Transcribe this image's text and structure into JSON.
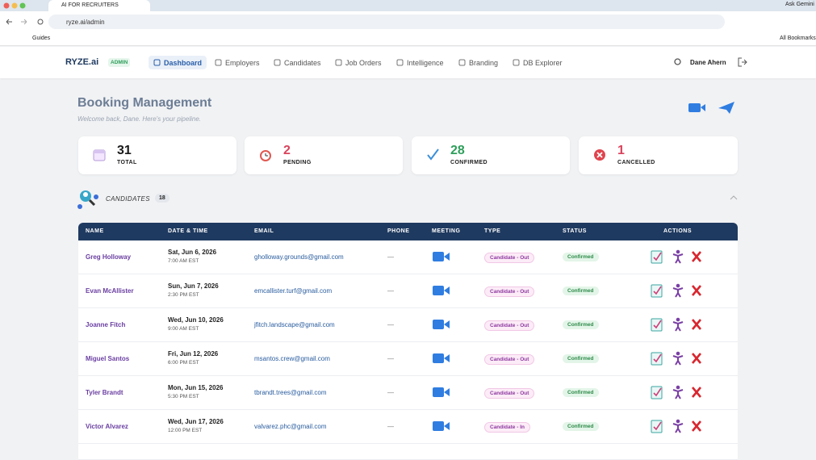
{
  "browser": {
    "tab_title": "AI FOR RECRUITERS",
    "ask": "Ask Gemini",
    "url": "ryze.ai/admin",
    "bookmark": "Guides",
    "all_bookmarks": "All Bookmarks"
  },
  "nav": {
    "brand": "RYZE.ai",
    "badge": "ADMIN",
    "items": [
      "Dashboard",
      "Employers",
      "Candidates",
      "Job Orders",
      "Intelligence",
      "Branding",
      "DB Explorer"
    ],
    "user": "Dane Ahern"
  },
  "header": {
    "title": "Booking Management",
    "subtitle": "Welcome back, Dane. Here's your pipeline."
  },
  "stats": [
    {
      "value": 31,
      "label": "TOTAL"
    },
    {
      "value": 2,
      "label": "PENDING"
    },
    {
      "value": 28,
      "label": "CONFIRMED"
    },
    {
      "value": 1,
      "label": "CANCELLED"
    }
  ],
  "section": {
    "title": "CANDIDATES",
    "count": 18
  },
  "table": {
    "columns": [
      "NAME",
      "DATE & TIME",
      "EMAIL",
      "PHONE",
      "MEETING",
      "TYPE",
      "STATUS",
      "ACTIONS"
    ],
    "rows": [
      [
        "Greg Holloway",
        "Sat, Jun 6, 2026",
        "7:00 AM EST",
        "gholloway.grounds@gmail.com",
        "—",
        "Candidate - Out",
        "Confirmed"
      ],
      [
        "Evan McAllister",
        "Sun, Jun 7, 2026",
        "2:30 PM EST",
        "emcallister.turf@gmail.com",
        "—",
        "Candidate - Out",
        "Confirmed"
      ],
      [
        "Joanne Fitch",
        "Wed, Jun 10, 2026",
        "9:00 AM EST",
        "jfitch.landscape@gmail.com",
        "—",
        "Candidate - Out",
        "Confirmed"
      ],
      [
        "Miguel Santos",
        "Fri, Jun 12, 2026",
        "6:00 PM EST",
        "msantos.crew@gmail.com",
        "—",
        "Candidate - Out",
        "Confirmed"
      ],
      [
        "Tyler Brandt",
        "Mon, Jun 15, 2026",
        "5:30 PM EST",
        "tbrandt.trees@gmail.com",
        "—",
        "Candidate - Out",
        "Confirmed"
      ],
      [
        "Victor Alvarez",
        "Wed, Jun 17, 2026",
        "12:00 PM EST",
        "valvarez.phc@gmail.com",
        "—",
        "Candidate - In",
        "Confirmed"
      ]
    ]
  }
}
